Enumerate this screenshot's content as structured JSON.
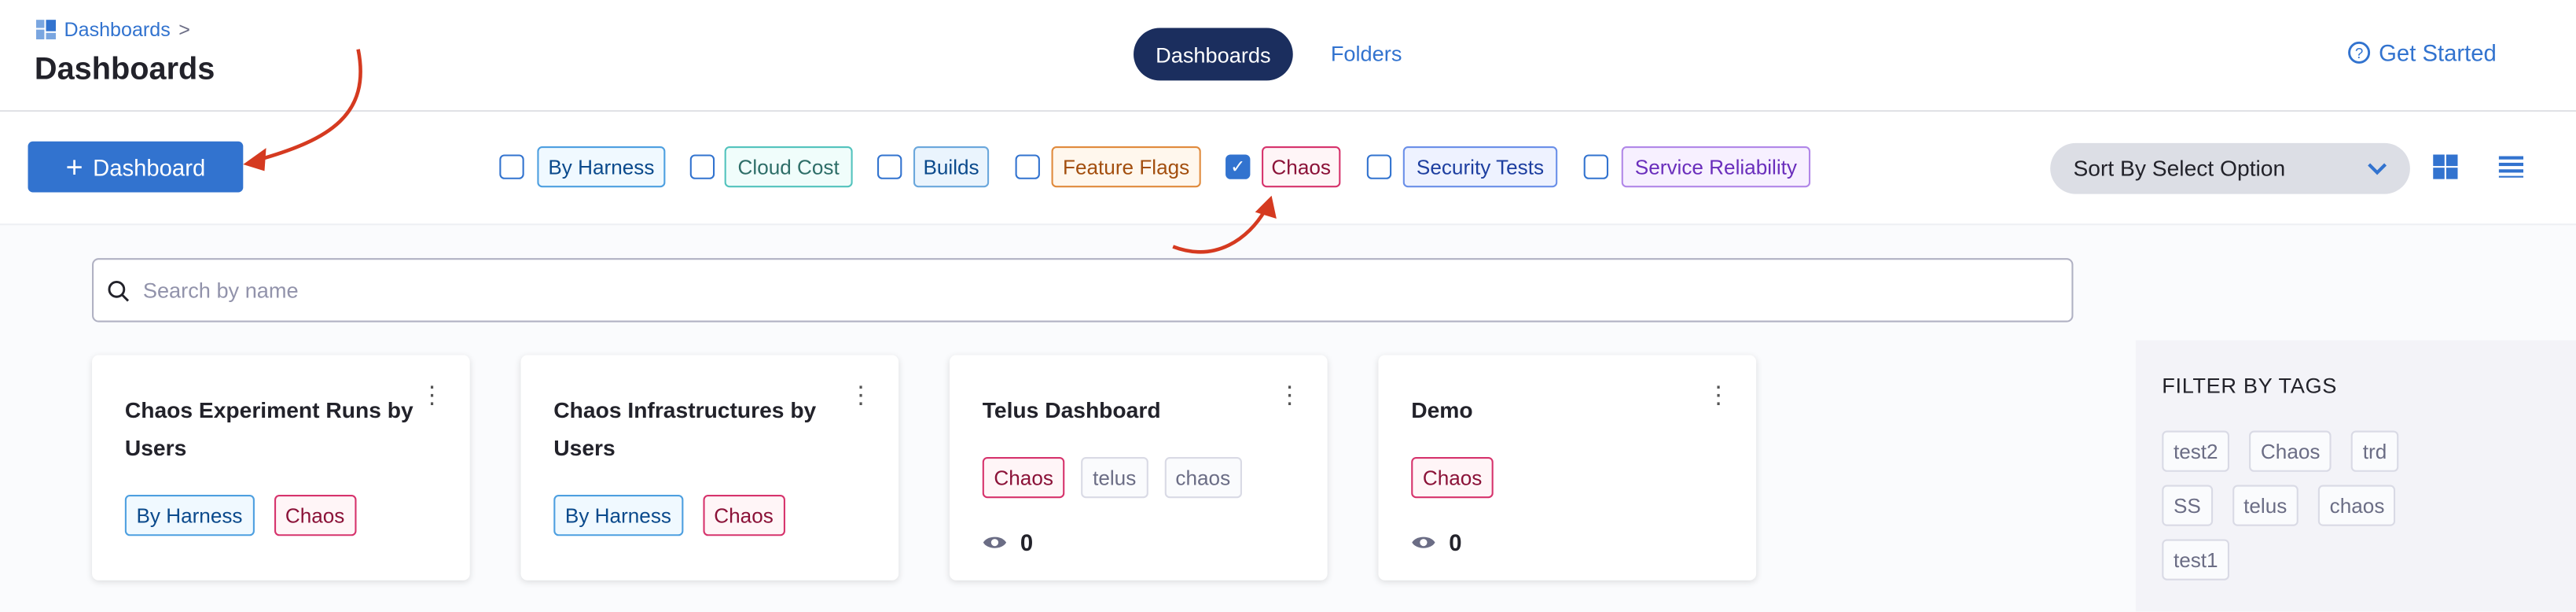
{
  "breadcrumb": {
    "label": "Dashboards",
    "separator": ">"
  },
  "page_title": "Dashboards",
  "tabs": [
    {
      "label": "Dashboards",
      "active": true
    },
    {
      "label": "Folders",
      "active": false
    }
  ],
  "get_started": "Get Started",
  "add_button": "Dashboard",
  "filters": [
    {
      "label": "By Harness",
      "checked": false,
      "color": "#0b4a8c"
    },
    {
      "label": "Cloud Cost",
      "checked": false,
      "color": "#2e6e68"
    },
    {
      "label": "Builds",
      "checked": false,
      "color": "#0b4a8c"
    },
    {
      "label": "Feature Flags",
      "checked": false,
      "color": "#a34f0f"
    },
    {
      "label": "Chaos",
      "checked": true,
      "color": "#8b1238"
    },
    {
      "label": "Security Tests",
      "checked": false,
      "color": "#1e3fa0"
    },
    {
      "label": "Service Reliability",
      "checked": false,
      "color": "#6a2ebc"
    }
  ],
  "sort": {
    "label": "Sort By Select Option"
  },
  "search": {
    "placeholder": "Search by name",
    "value": ""
  },
  "cards": [
    {
      "title": "Chaos Experiment Runs by Users",
      "tags": [
        "By Harness",
        "Chaos"
      ]
    },
    {
      "title": "Chaos Infrastructures by Users",
      "tags": [
        "By Harness",
        "Chaos"
      ]
    },
    {
      "title": "Telus Dashboard",
      "tags": [
        "Chaos",
        "telus",
        "chaos"
      ],
      "views": "0"
    },
    {
      "title": "Demo",
      "tags": [
        "Chaos"
      ],
      "views": "0"
    }
  ],
  "filter_by_tags": {
    "title": "FILTER BY TAGS",
    "tags": [
      "test2",
      "Chaos",
      "trd",
      "SS",
      "telus",
      "chaos",
      "test1"
    ]
  },
  "accent": "#3273cf"
}
